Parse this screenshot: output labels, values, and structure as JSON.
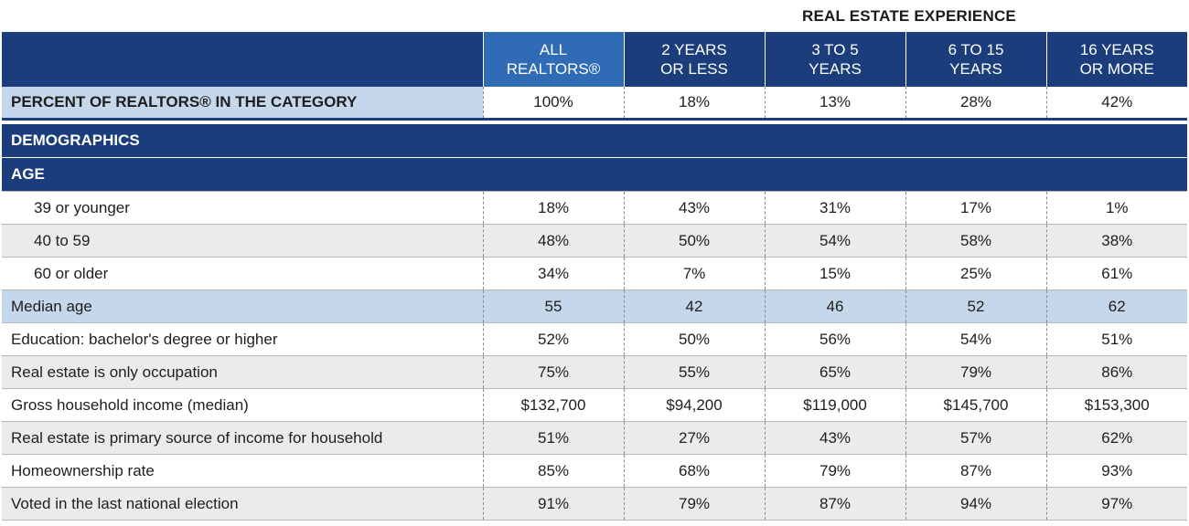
{
  "super_title": "REAL ESTATE EXPERIENCE",
  "columns": [
    "ALL\nREALTORS®",
    "2 YEARS\nOR LESS",
    "3 TO 5\nYEARS",
    "6 TO 15\nYEARS",
    "16 YEARS\nOR MORE"
  ],
  "columns_l1": [
    "ALL",
    "2 YEARS",
    "3 TO 5",
    "6 TO 15",
    "16 YEARS"
  ],
  "columns_l2": [
    "REALTORS®",
    "OR LESS",
    "YEARS",
    "YEARS",
    "OR MORE"
  ],
  "percent_row": {
    "label": "PERCENT OF REALTORS® IN THE CATEGORY",
    "values": [
      "100%",
      "18%",
      "13%",
      "28%",
      "42%"
    ]
  },
  "sections": {
    "demographics": "DEMOGRAPHICS",
    "age": "AGE"
  },
  "rows": [
    {
      "label": "39 or younger",
      "values": [
        "18%",
        "43%",
        "31%",
        "17%",
        "1%"
      ]
    },
    {
      "label": "40 to 59",
      "values": [
        "48%",
        "50%",
        "54%",
        "58%",
        "38%"
      ]
    },
    {
      "label": "60 or older",
      "values": [
        "34%",
        "7%",
        "15%",
        "25%",
        "61%"
      ]
    },
    {
      "label": "Median age",
      "values": [
        "55",
        "42",
        "46",
        "52",
        "62"
      ]
    },
    {
      "label": "Education: bachelor's degree or higher",
      "values": [
        "52%",
        "50%",
        "56%",
        "54%",
        "51%"
      ]
    },
    {
      "label": "Real estate is only occupation",
      "values": [
        "75%",
        "55%",
        "65%",
        "79%",
        "86%"
      ]
    },
    {
      "label": "Gross household income (median)",
      "values": [
        "$132,700",
        "$94,200",
        "$119,000",
        "$145,700",
        "$153,300"
      ]
    },
    {
      "label": "Real estate is primary source of income for household",
      "values": [
        "51%",
        "27%",
        "43%",
        "57%",
        "62%"
      ]
    },
    {
      "label": "Homeownership rate",
      "values": [
        "85%",
        "68%",
        "79%",
        "87%",
        "93%"
      ]
    },
    {
      "label": "Voted in the last national election",
      "values": [
        "91%",
        "79%",
        "87%",
        "94%",
        "97%"
      ]
    }
  ],
  "colors": {
    "header_dark": "#1b3d7b",
    "header_all": "#2f6cb5",
    "highlight": "#c5d7ea",
    "shade": "#ebebeb"
  }
}
